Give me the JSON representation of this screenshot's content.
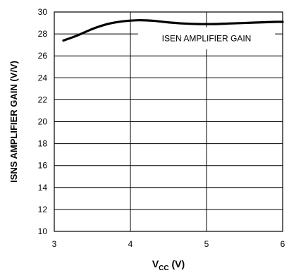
{
  "chart_data": {
    "type": "line",
    "annotation": "ISEN AMPLIFIER GAIN",
    "xlabel": {
      "main": "V",
      "sub": "CC",
      "unit": " (V)"
    },
    "ylabel": "ISNS AMPLIFIER GAIN (V/V)",
    "xlim": [
      3,
      6
    ],
    "ylim": [
      10,
      30
    ],
    "xticks": [
      "3",
      "4",
      "5",
      "6"
    ],
    "yticks": [
      "10",
      "12",
      "14",
      "16",
      "18",
      "20",
      "22",
      "24",
      "26",
      "28",
      "30"
    ],
    "grid": true,
    "series": [
      {
        "x": [
          3.12,
          3.3,
          3.5,
          3.7,
          3.9,
          4.1,
          4.3,
          4.5,
          4.7,
          4.9,
          5.1,
          5.3,
          5.5,
          5.7,
          5.9,
          6.0
        ],
        "y": [
          27.4,
          27.85,
          28.45,
          28.9,
          29.15,
          29.25,
          29.2,
          29.05,
          28.95,
          28.9,
          28.9,
          28.95,
          29.0,
          29.05,
          29.1,
          29.1
        ]
      }
    ]
  }
}
